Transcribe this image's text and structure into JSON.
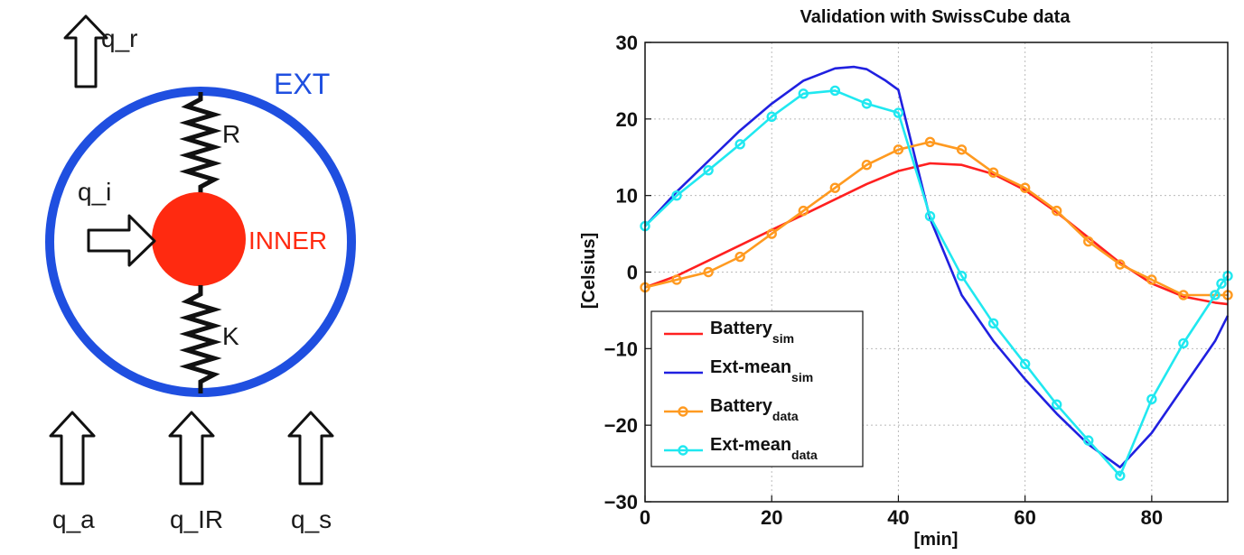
{
  "diagram": {
    "labels": {
      "q_r": "q_r",
      "ext": "EXT",
      "r": "R",
      "q_i": "q_i",
      "inner": "INNER",
      "k": "K",
      "q_a": "q_a",
      "q_ir": "q_IR",
      "q_s": "q_s"
    },
    "colors": {
      "ext_ring": "#1f4fe0",
      "inner_body": "#ff2a10",
      "inner_label": "#ff2a10",
      "ext_label": "#1f4fe0"
    }
  },
  "chart_data": {
    "type": "line",
    "title": "Validation with SwissCube data",
    "xlabel": "[min]",
    "ylabel": "[Celsius]",
    "xlim": [
      0,
      92
    ],
    "ylim": [
      -30,
      30
    ],
    "xticks": [
      0,
      20,
      40,
      60,
      80
    ],
    "yticks": [
      -30,
      -20,
      -10,
      0,
      10,
      20,
      30
    ],
    "grid": true,
    "legend_position": "bottom-left",
    "series": [
      {
        "name": "Battery",
        "name_sub": "sim",
        "color": "#ff2020",
        "marker": "none",
        "x": [
          0,
          5,
          10,
          15,
          20,
          25,
          30,
          35,
          40,
          45,
          50,
          55,
          60,
          65,
          70,
          75,
          80,
          85,
          90,
          92
        ],
        "y": [
          -2,
          -0.5,
          1.5,
          3.5,
          5.5,
          7.5,
          9.5,
          11.5,
          13.2,
          14.2,
          14.0,
          12.8,
          10.7,
          7.8,
          4.5,
          1.2,
          -1.5,
          -3.2,
          -4,
          -4.2
        ]
      },
      {
        "name": "Ext-mean",
        "name_sub": "sim",
        "color": "#2020e0",
        "marker": "none",
        "x": [
          0,
          5,
          10,
          15,
          20,
          25,
          30,
          33,
          35,
          38,
          40,
          45,
          50,
          55,
          60,
          65,
          70,
          75,
          80,
          85,
          90,
          92
        ],
        "y": [
          6,
          10.5,
          14.5,
          18.5,
          22,
          25,
          26.6,
          26.8,
          26.5,
          25,
          23.8,
          7,
          -3,
          -9,
          -14,
          -18.5,
          -22.5,
          -25.5,
          -21,
          -15,
          -9,
          -5.7
        ]
      },
      {
        "name": "Battery",
        "name_sub": "data",
        "color": "#ff9a20",
        "marker": "circle",
        "x": [
          0,
          5,
          10,
          15,
          20,
          25,
          30,
          35,
          40,
          45,
          50,
          55,
          60,
          65,
          70,
          75,
          80,
          85,
          90,
          92
        ],
        "y": [
          -2,
          -1,
          0,
          2,
          5,
          8,
          11,
          14,
          16,
          17,
          16,
          13,
          11,
          8,
          4,
          1,
          -1,
          -3,
          -3,
          -3
        ]
      },
      {
        "name": "Ext-mean",
        "name_sub": "data",
        "color": "#20e8f0",
        "marker": "circle",
        "x": [
          0,
          5,
          10,
          15,
          20,
          25,
          30,
          35,
          40,
          45,
          50,
          55,
          60,
          65,
          70,
          75,
          80,
          85,
          90,
          91,
          92
        ],
        "y": [
          6,
          10,
          13.3,
          16.7,
          20.3,
          23.3,
          23.7,
          22,
          20.8,
          7.3,
          -0.5,
          -6.7,
          -12,
          -17.3,
          -22,
          -26.6,
          -16.6,
          -9.3,
          -3,
          -1.5,
          -0.5
        ]
      }
    ]
  }
}
